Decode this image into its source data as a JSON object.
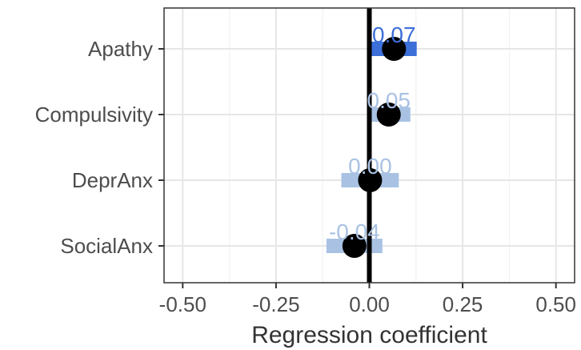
{
  "chart_data": {
    "type": "scatter",
    "title": "",
    "xlabel": "Regression coefficient",
    "ylabel": "",
    "xlim": [
      -0.55,
      0.55
    ],
    "xticks": [
      -0.5,
      -0.25,
      0.0,
      0.25,
      0.5
    ],
    "xtick_labels": [
      "-0.50",
      "-0.25",
      "0.00",
      "0.25",
      "0.50"
    ],
    "grid": true,
    "legend": "none",
    "categories": [
      "Apathy",
      "Compulsivity",
      "DeprAnx",
      "SocialAnx"
    ],
    "points": [
      {
        "category": "Apathy",
        "estimate": 0.066,
        "ci_low": 0.0,
        "ci_high": 0.127,
        "label": "0.07",
        "significant": true
      },
      {
        "category": "Compulsivity",
        "estimate": 0.052,
        "ci_low": -0.005,
        "ci_high": 0.11,
        "label": "0.05",
        "significant": false
      },
      {
        "category": "DeprAnx",
        "estimate": 0.002,
        "ci_low": -0.075,
        "ci_high": 0.079,
        "label": "0.00",
        "significant": false
      },
      {
        "category": "SocialAnx",
        "estimate": -0.04,
        "ci_low": -0.115,
        "ci_high": 0.035,
        "label": "-0.04",
        "significant": false
      }
    ],
    "colors": {
      "significant_bar": "#3d6fd9",
      "significant_label": "#3d6fd9",
      "nonsignificant_bar": "#a9c2e3",
      "nonsignificant_label": "#a9c2e3",
      "point": "#000000",
      "zero_line": "#000000",
      "grid": "#e6e6e6",
      "panel_border": "#333333"
    }
  }
}
